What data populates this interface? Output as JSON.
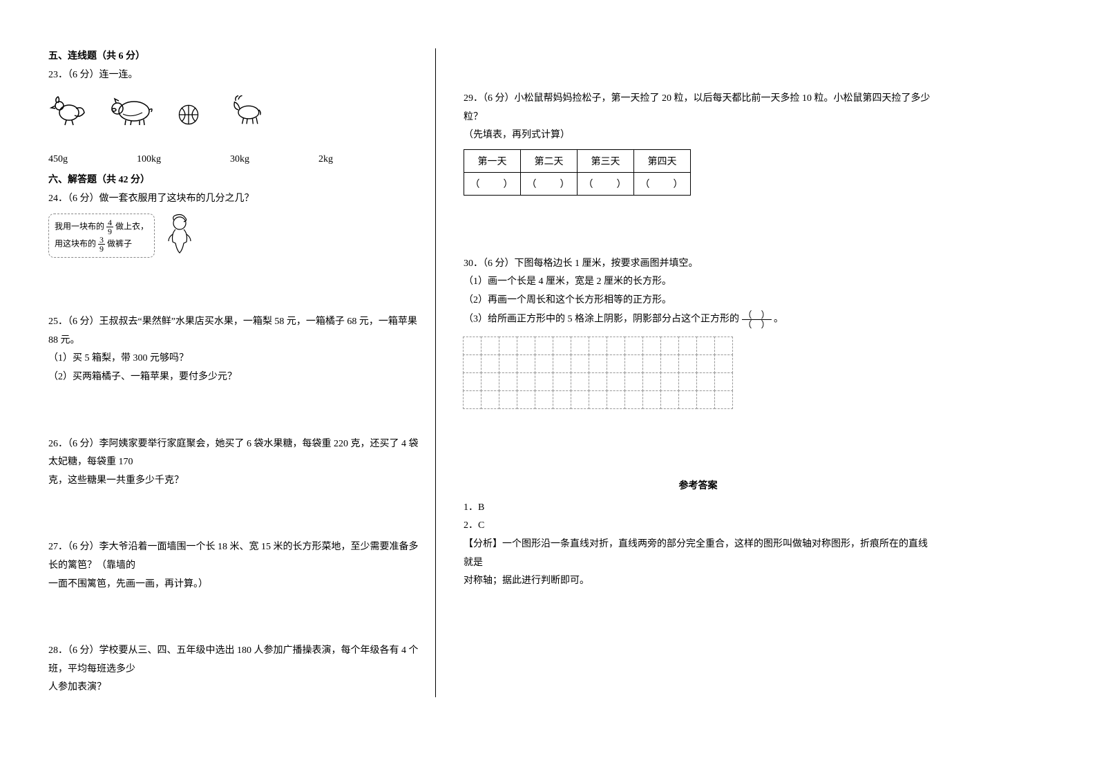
{
  "left": {
    "section5_title": "五、连线题（共 6 分）",
    "q23": {
      "prompt": "23．（6 分）连一连。",
      "weights": [
        "450g",
        "100kg",
        "30kg",
        "2kg"
      ]
    },
    "section6_title": "六、解答题（共 42 分）",
    "q24": {
      "prompt": "24．（6 分）做一套衣服用了这块布的几分之几？",
      "bubble_line1_a": "我用一块布的",
      "bubble_line1_b": "做上衣，",
      "bubble_line2_a": "用这块布的",
      "bubble_line2_b": "做裤子",
      "frac1_n": "4",
      "frac1_d": "9",
      "frac2_n": "3",
      "frac2_d": "9"
    },
    "q25": {
      "line1": "25．（6 分）王叔叔去“果然鲜”水果店买水果，一箱梨 58 元，一箱橘子 68 元，一箱苹果 88 元。",
      "line2": "（1）买 5 箱梨，带 300 元够吗？",
      "line3": "（2）买两箱橘子、一箱苹果，要付多少元？"
    },
    "q26": {
      "line1": "26．（6 分）李阿姨家要举行家庭聚会，她买了 6 袋水果糖，每袋重 220 克，还买了 4 袋太妃糖，每袋重 170",
      "line2": "克，这些糖果一共重多少千克？"
    },
    "q27": {
      "line1": "27．（6 分）李大爷沿着一面墙围一个长 18 米、宽 15 米的长方形菜地，至少需要准备多长的篱笆？（靠墙的",
      "line2": "一面不围篱笆，先画一画，再计算。）"
    },
    "q28": {
      "line1": "28．（6 分）学校要从三、四、五年级中选出 180 人参加广播操表演，每个年级各有 4 个班，平均每班选多少",
      "line2": "人参加表演？"
    }
  },
  "right": {
    "q29": {
      "line1": "29．（6 分）小松鼠帮妈妈捡松子，第一天捡了 20 粒，以后每天都比前一天多捡 10 粒。小松鼠第四天捡了多少粒？",
      "line2": "（先填表，再列式计算）",
      "headers": [
        "第一天",
        "第二天",
        "第三天",
        "第四天"
      ],
      "blank": "（　　）"
    },
    "q30": {
      "line1": "30．（6 分）下图每格边长 1 厘米，按要求画图并填空。",
      "line2": "（1）画一个长是 4 厘米，宽是 2 厘米的长方形。",
      "line3": "（2）再画一个周长和这个长方形相等的正方形。",
      "line4a": "（3）给所画正方形中的 5 格涂上阴影，阴影部分占这个正方形的",
      "line4b": "。",
      "frac_top": "（　）",
      "frac_bot": "（　）",
      "grid_rows": 4,
      "grid_cols": 15
    },
    "answers": {
      "title": "参考答案",
      "a1": "1．B",
      "a2": "2．C",
      "a3": "【分析】一个图形沿一条直线对折，直线两旁的部分完全重合，这样的图形叫做轴对称图形，折痕所在的直线就是",
      "a4": "对称轴；据此进行判断即可。"
    }
  },
  "style": {
    "text_color": "#000000",
    "bg": "#ffffff",
    "border_color": "#000000",
    "dash_color": "#999999"
  }
}
